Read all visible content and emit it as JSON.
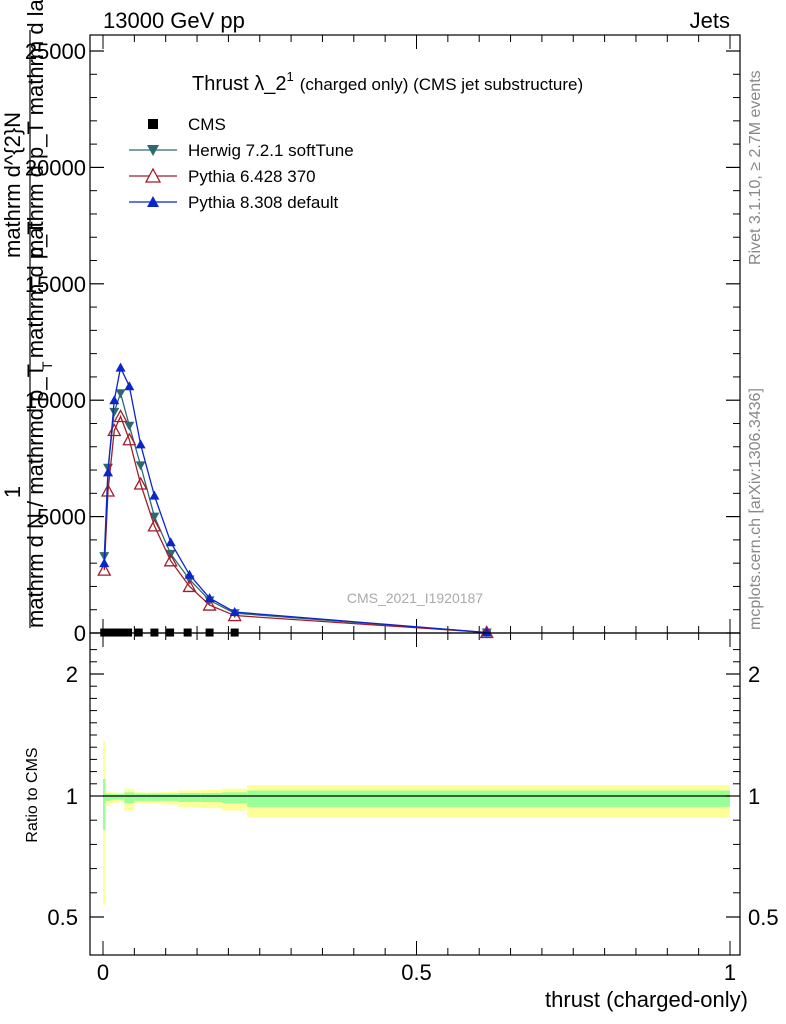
{
  "header": {
    "left": "13000 GeV pp",
    "right": "Jets"
  },
  "side_text": {
    "rivet": "Rivet 3.1.10, ≥ 2.7M events",
    "mcplots": "mcplots.cern.ch [arXiv:1306.3436]"
  },
  "chart_data": [
    {
      "type": "line",
      "title": "Thrust λ_2",
      "title_sup": "1",
      "subtitle": "(charged only) (CMS jet substructure)",
      "ylabel_parts": {
        "one": "1",
        "n_line": "mathrm d N / mathrmd p_T mathrm d p_T",
        "n_sub": "T",
        "d_line_top": "mathrm d^{2}N",
        "d_line_bottom": "mathrm d p_T mathrm d lambda"
      },
      "ylim": [
        0,
        26000
      ],
      "yticks": [
        0,
        5000,
        10000,
        15000,
        20000,
        25000
      ],
      "ytick_labels": [
        "0",
        "5000",
        "10000",
        "15000",
        "20000",
        "25000"
      ],
      "xlim": [
        0,
        1
      ],
      "watermark": "CMS_2021_I1920187",
      "legend": [
        "CMS",
        "Herwig 7.2.1 softTune",
        "Pythia 6.428 370",
        "Pythia 8.308 default"
      ],
      "series": [
        {
          "name": "CMS",
          "color": "#000000",
          "marker": "square",
          "x": [
            0.002,
            0.011,
            0.02,
            0.028,
            0.04,
            0.057,
            0.082,
            0.107,
            0.135,
            0.17,
            0.21,
            0.612
          ],
          "y": [
            20,
            20,
            20,
            20,
            20,
            20,
            20,
            20,
            20,
            20,
            20,
            20
          ]
        },
        {
          "name": "Herwig 7.2.1 softTune",
          "color": "#2d6a6f",
          "marker": "triangle-down",
          "x": [
            0.002,
            0.008,
            0.018,
            0.028,
            0.042,
            0.06,
            0.082,
            0.108,
            0.138,
            0.17,
            0.21,
            0.612
          ],
          "y": [
            3300,
            7100,
            9500,
            10300,
            8900,
            7200,
            5000,
            3400,
            2300,
            1400,
            850,
            20
          ]
        },
        {
          "name": "Pythia 6.428 370",
          "color": "#a01e2b",
          "marker": "triangle-open",
          "x": [
            0.002,
            0.008,
            0.018,
            0.028,
            0.042,
            0.06,
            0.082,
            0.108,
            0.138,
            0.17,
            0.21,
            0.612
          ],
          "y": [
            2700,
            6100,
            8700,
            9300,
            8300,
            6400,
            4600,
            3100,
            2000,
            1200,
            750,
            20
          ]
        },
        {
          "name": "Pythia 8.308 default",
          "color": "#0b26c8",
          "marker": "triangle-up",
          "x": [
            0.002,
            0.008,
            0.018,
            0.028,
            0.042,
            0.06,
            0.082,
            0.108,
            0.138,
            0.17,
            0.21,
            0.612
          ],
          "y": [
            3000,
            6900,
            10000,
            11400,
            10600,
            8100,
            5900,
            3900,
            2500,
            1500,
            900,
            20
          ]
        }
      ]
    },
    {
      "type": "area",
      "ylabel": "Ratio to CMS",
      "xlabel": "thrust (charged-only)",
      "xlim": [
        0,
        1
      ],
      "ylim": [
        0.35,
        2.3
      ],
      "yticks": [
        0.5,
        1,
        2
      ],
      "ytick_labels": [
        "0.5",
        "1",
        "2"
      ],
      "xticks": [
        0,
        0.5,
        1
      ],
      "xtick_labels": [
        "0",
        "0.5",
        "1"
      ],
      "reference": 1,
      "bands": {
        "edges": [
          0,
          0.004,
          0.012,
          0.024,
          0.034,
          0.05,
          0.07,
          0.095,
          0.12,
          0.155,
          0.19,
          0.23,
          1.0
        ],
        "yellow_half": [
          0.45,
          0.04,
          0.03,
          0.025,
          0.06,
          0.03,
          0.03,
          0.035,
          0.045,
          0.05,
          0.06,
          0.09
        ],
        "green_half": [
          0.14,
          0.02,
          0.015,
          0.015,
          0.03,
          0.02,
          0.02,
          0.02,
          0.025,
          0.025,
          0.03,
          0.045
        ],
        "yellow_color": "#ffff99",
        "green_color": "#99ff99"
      }
    }
  ]
}
